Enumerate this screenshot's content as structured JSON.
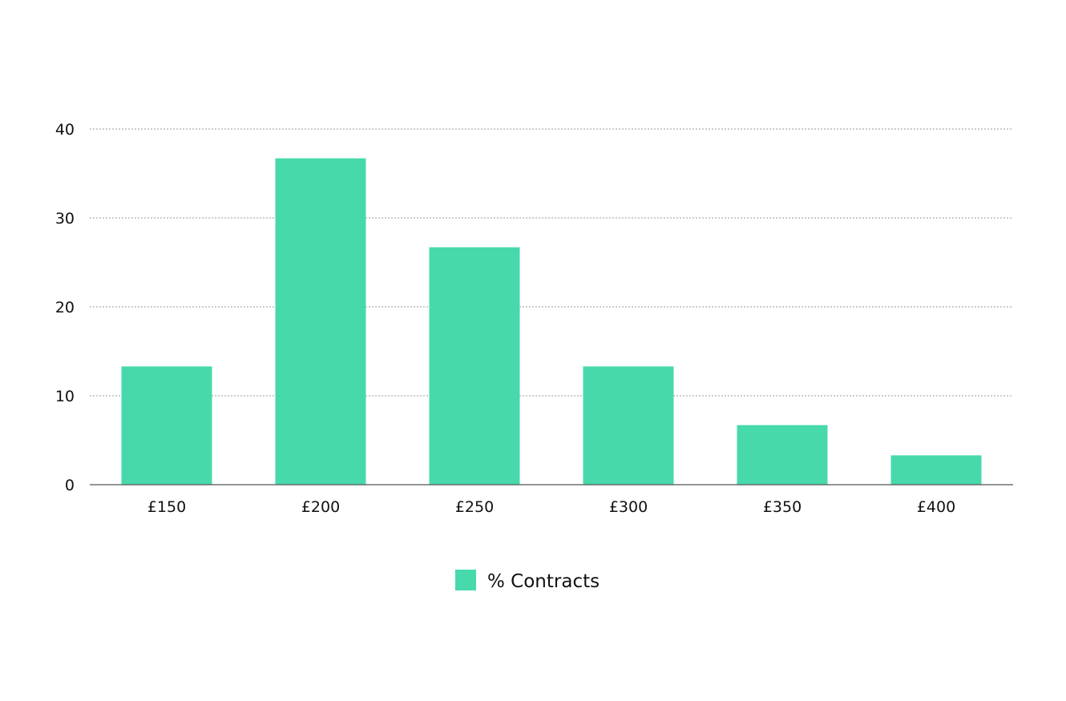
{
  "chart_data": {
    "type": "bar",
    "categories": [
      "£150",
      "£200",
      "£250",
      "£300",
      "£350",
      "£400"
    ],
    "series": [
      {
        "name": "% Contracts",
        "values": [
          13.3,
          36.7,
          26.7,
          13.3,
          6.7,
          3.3
        ],
        "color": "#47d9ab"
      }
    ],
    "yticks": [
      0,
      10,
      20,
      30,
      40
    ],
    "ylim": [
      0,
      40
    ],
    "grid": true,
    "legend_position": "bottom-center",
    "title": "",
    "xlabel": "",
    "ylabel": ""
  },
  "colors": {
    "bar": "#47d9ab",
    "grid": "#9a9a9a",
    "axis": "#555555",
    "text": "#111111"
  }
}
